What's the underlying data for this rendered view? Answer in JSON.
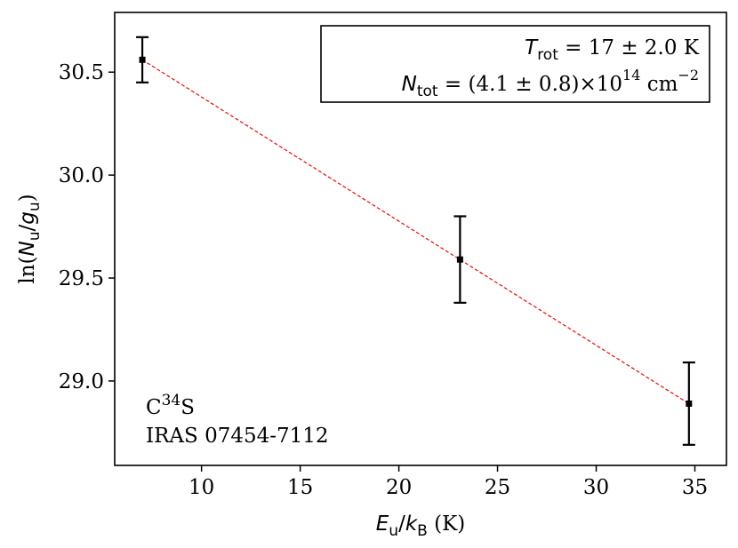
{
  "chart_data": {
    "type": "scatter",
    "title": "",
    "xlabel": "E_u/k_B (K)",
    "ylabel": "ln(N_u/g_u)",
    "xlim": [
      5.6,
      36.6
    ],
    "ylim": [
      28.59,
      30.79
    ],
    "xticks": [
      "10",
      "15",
      "20",
      "25",
      "30",
      "35"
    ],
    "yticks": [
      "29.0",
      "29.5",
      "30.0",
      "30.5"
    ],
    "grid": false,
    "series": [
      {
        "points": [
          {
            "x": 7.0,
            "y": 30.56,
            "yerr": 0.11
          },
          {
            "x": 23.1,
            "y": 29.59,
            "yerr": 0.21
          },
          {
            "x": 34.7,
            "y": 28.89,
            "yerr": 0.2
          }
        ]
      }
    ],
    "fit_line": {
      "color": "#ff0000",
      "style": "dashed",
      "x": [
        7.0,
        34.7
      ],
      "y": [
        30.56,
        28.89
      ]
    },
    "annotations": {
      "trot": {
        "var": "T",
        "sub": "rot",
        "text": " = 17 ± 2.0 K"
      },
      "ntot": {
        "var": "N",
        "sub": "tot",
        "text": " = (4.1 ± 0.8)×10",
        "exp": "14",
        "unit": " cm",
        "unit_exp": "−2"
      },
      "molecule": {
        "pre": "C",
        "sup": "34",
        "post": "S"
      },
      "source": "IRAS 07454-7112"
    },
    "xlabel_parts": {
      "var1": "E",
      "sub1": "u",
      "slash": "/",
      "var2": "k",
      "sub2": "B",
      "unit": " (K)"
    },
    "ylabel_parts": {
      "pre": "ln(",
      "var1": "N",
      "sub1": "u",
      "slash": "/",
      "var2": "g",
      "sub2": "u",
      "post": ")"
    }
  }
}
